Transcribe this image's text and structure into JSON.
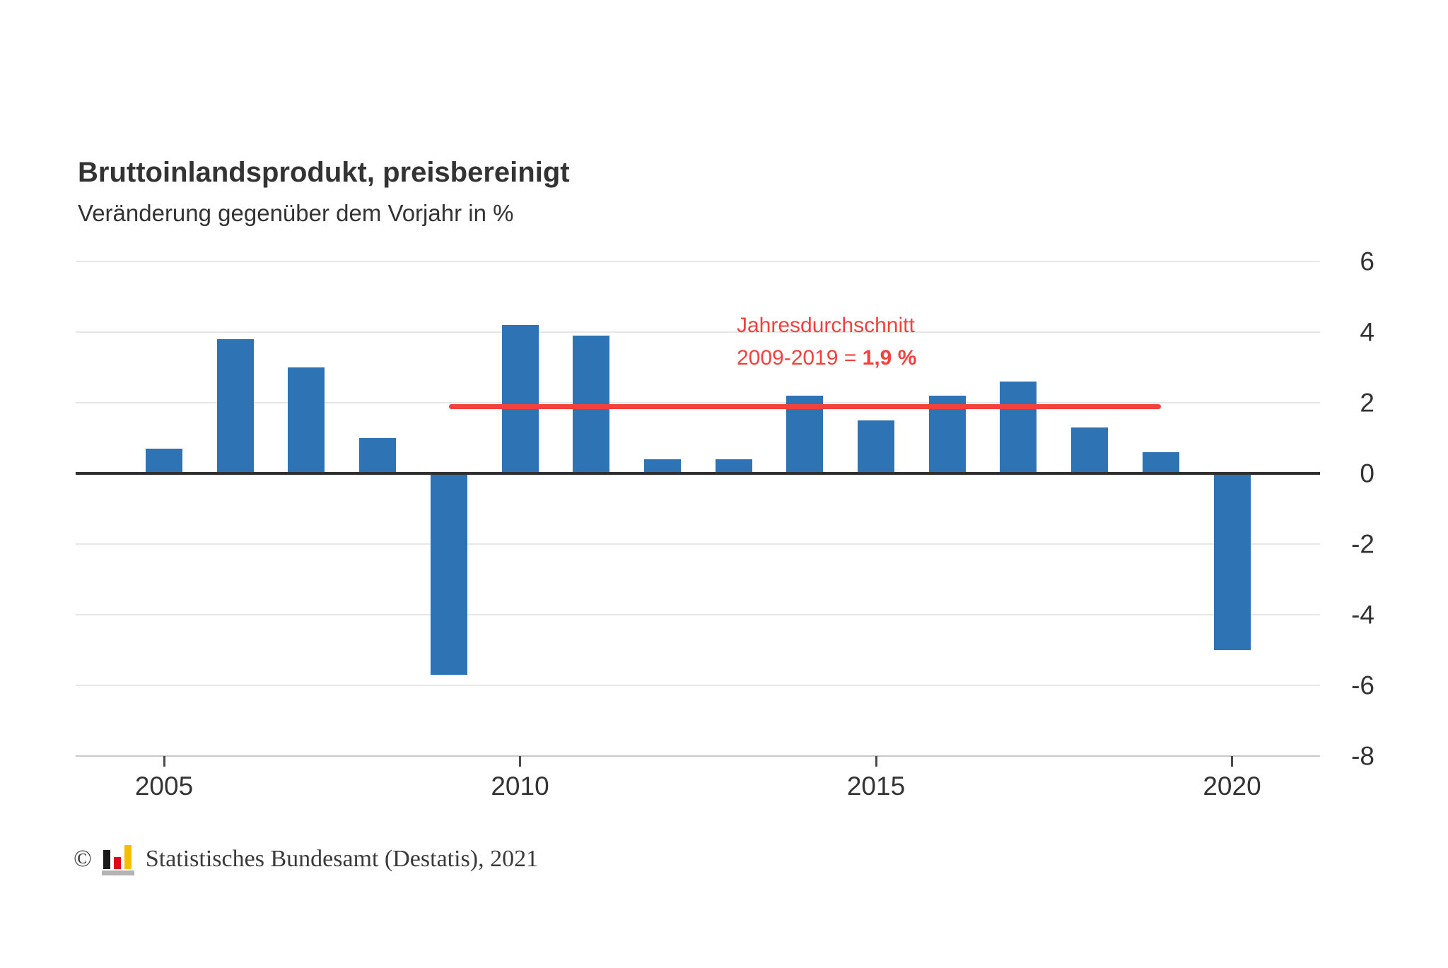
{
  "title": "Bruttoinlandsprodukt, preisbereinigt",
  "subtitle": "Veränderung gegenüber dem Vorjahr in %",
  "annotation": {
    "line1": "Jahresdurchschnitt",
    "line2_prefix": "2009-2019 = ",
    "line2_bold": "1,9 %"
  },
  "footer": {
    "copyright": "©",
    "text": "Statistisches Bundesamt (Destatis), 2021"
  },
  "colors": {
    "bar": "#2e74b5",
    "accent": "#f5413d",
    "grid": "#e6e6e6",
    "zero_line": "#303030",
    "axis_line": "#c9c9c9",
    "text": "#333333",
    "logo_black": "#1a1a1a",
    "logo_red": "#e2001a",
    "logo_gold": "#f6be00",
    "logo_gray": "#b3b3b3"
  },
  "chart_data": {
    "type": "bar",
    "title": "Bruttoinlandsprodukt, preisbereinigt",
    "subtitle": "Veränderung gegenüber dem Vorjahr in %",
    "categories": [
      2005,
      2006,
      2007,
      2008,
      2009,
      2010,
      2011,
      2012,
      2013,
      2014,
      2015,
      2016,
      2017,
      2018,
      2019,
      2020
    ],
    "values": [
      0.7,
      3.8,
      3.0,
      1.0,
      -5.7,
      4.2,
      3.9,
      0.4,
      0.4,
      2.2,
      1.5,
      2.2,
      2.6,
      1.3,
      0.6,
      -5.0
    ],
    "unit": "%",
    "xlabel": "",
    "ylabel": "Veränderung gegenüber dem Vorjahr in %",
    "ylim": [
      -8,
      6
    ],
    "ytick_step": 2,
    "yticks": [
      6,
      4,
      2,
      0,
      -2,
      -4,
      -6,
      -8
    ],
    "xticks": [
      2005,
      2010,
      2015,
      2020
    ],
    "grid": true,
    "yaxis_side": "right",
    "reference_line": {
      "value": 1.9,
      "from_category": 2009,
      "to_category": 2019,
      "label": "Jahresdurchschnitt 2009-2019 = 1,9 %"
    }
  }
}
